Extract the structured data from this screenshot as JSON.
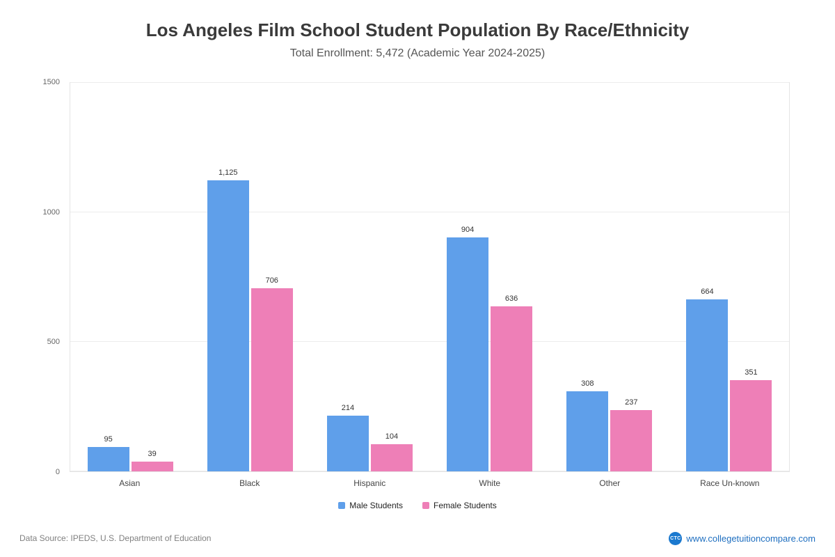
{
  "header": {
    "title": "Los Angeles Film School Student Population By Race/Ethnicity",
    "subtitle": "Total Enrollment: 5,472 (Academic Year 2024-2025)"
  },
  "chart_data": {
    "type": "bar",
    "title": "Los Angeles Film School Student Population By Race/Ethnicity",
    "subtitle": "Total Enrollment: 5,472 (Academic Year 2024-2025)",
    "categories": [
      "Asian",
      "Black",
      "Hispanic",
      "White",
      "Other",
      "Race Un-known"
    ],
    "series": [
      {
        "name": "Male Students",
        "color": "#5f9fea",
        "values": [
          95,
          1125,
          214,
          904,
          308,
          664
        ]
      },
      {
        "name": "Female Students",
        "color": "#ee7fb7",
        "values": [
          39,
          706,
          104,
          636,
          237,
          351
        ]
      }
    ],
    "ylim": [
      0,
      1500
    ],
    "yticks": [
      0,
      500,
      1000,
      1500
    ],
    "grid": true,
    "legend_position": "bottom"
  },
  "footer": {
    "source": "Data Source: IPEDS, U.S. Department of Education",
    "badge": "CTC",
    "site": "www.collegetuitioncompare.com"
  }
}
